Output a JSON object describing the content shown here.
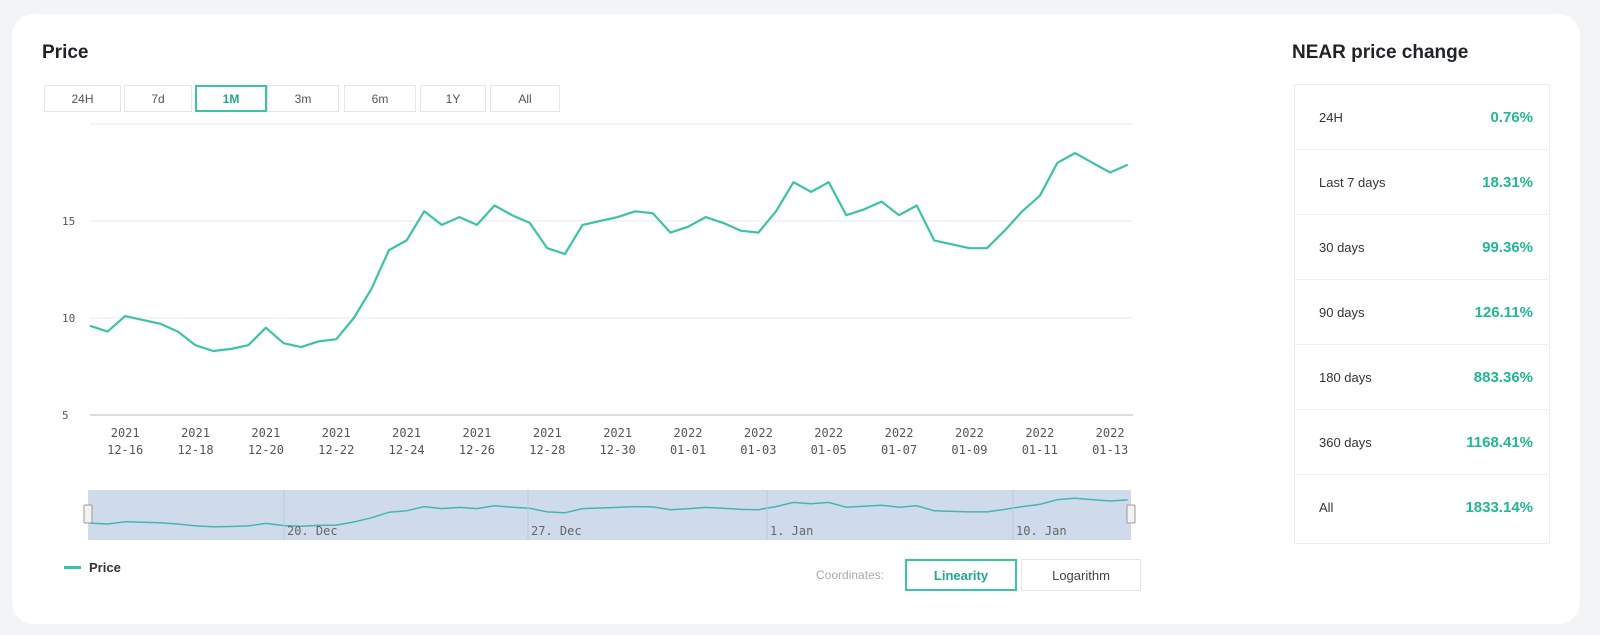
{
  "header": {
    "price_title": "Price",
    "change_title": "NEAR price change"
  },
  "ranges": [
    {
      "label": "24H"
    },
    {
      "label": "7d"
    },
    {
      "label": "1M",
      "active": true
    },
    {
      "label": "3m"
    },
    {
      "label": "6m"
    },
    {
      "label": "1Y"
    },
    {
      "label": "All"
    }
  ],
  "chart_data": {
    "type": "line",
    "title": "Price",
    "xlabel": "",
    "ylabel": "",
    "ylim": [
      5,
      20
    ],
    "y_ticks": [
      "15",
      "10",
      "5"
    ],
    "x_ticks": [
      {
        "year": "2021",
        "day": "12-16"
      },
      {
        "year": "2021",
        "day": "12-18"
      },
      {
        "year": "2021",
        "day": "12-20"
      },
      {
        "year": "2021",
        "day": "12-22"
      },
      {
        "year": "2021",
        "day": "12-24"
      },
      {
        "year": "2021",
        "day": "12-26"
      },
      {
        "year": "2021",
        "day": "12-28"
      },
      {
        "year": "2021",
        "day": "12-30"
      },
      {
        "year": "2022",
        "day": "01-01"
      },
      {
        "year": "2022",
        "day": "01-03"
      },
      {
        "year": "2022",
        "day": "01-05"
      },
      {
        "year": "2022",
        "day": "01-07"
      },
      {
        "year": "2022",
        "day": "01-09"
      },
      {
        "year": "2022",
        "day": "01-11"
      },
      {
        "year": "2022",
        "day": "01-13"
      }
    ],
    "series": [
      {
        "name": "Price",
        "color": "#3cc3a6",
        "x": [
          "2021-12-15",
          "2021-12-15 12:00",
          "2021-12-16",
          "2021-12-16 12:00",
          "2021-12-17",
          "2021-12-17 12:00",
          "2021-12-18",
          "2021-12-18 12:00",
          "2021-12-19",
          "2021-12-19 12:00",
          "2021-12-20",
          "2021-12-20 12:00",
          "2021-12-21",
          "2021-12-21 12:00",
          "2021-12-22",
          "2021-12-22 12:00",
          "2021-12-23",
          "2021-12-23 12:00",
          "2021-12-24",
          "2021-12-24 12:00",
          "2021-12-25",
          "2021-12-25 12:00",
          "2021-12-26",
          "2021-12-26 12:00",
          "2021-12-27",
          "2021-12-27 12:00",
          "2021-12-28",
          "2021-12-28 12:00",
          "2021-12-29",
          "2021-12-29 12:00",
          "2021-12-30",
          "2021-12-30 12:00",
          "2021-12-31",
          "2021-12-31 12:00",
          "2022-01-01",
          "2022-01-01 12:00",
          "2022-01-02",
          "2022-01-02 12:00",
          "2022-01-03",
          "2022-01-03 12:00",
          "2022-01-04",
          "2022-01-04 12:00",
          "2022-01-05",
          "2022-01-05 12:00",
          "2022-01-06",
          "2022-01-06 12:00",
          "2022-01-07",
          "2022-01-07 12:00",
          "2022-01-08",
          "2022-01-08 12:00",
          "2022-01-09",
          "2022-01-09 12:00",
          "2022-01-10",
          "2022-01-10 12:00",
          "2022-01-11",
          "2022-01-11 12:00",
          "2022-01-12",
          "2022-01-12 12:00",
          "2022-01-13",
          "2022-01-13 12:00"
        ],
        "values": [
          9.6,
          9.3,
          10.1,
          9.9,
          9.7,
          9.3,
          8.6,
          8.3,
          8.4,
          8.6,
          9.5,
          8.7,
          8.5,
          8.8,
          8.9,
          10.0,
          11.5,
          13.5,
          14.0,
          15.5,
          14.8,
          15.2,
          14.8,
          15.8,
          15.3,
          14.9,
          13.6,
          13.3,
          14.8,
          15.0,
          15.2,
          15.5,
          15.4,
          14.4,
          14.7,
          15.2,
          14.9,
          14.5,
          14.4,
          15.5,
          17.0,
          16.5,
          17.0,
          15.3,
          15.6,
          16.0,
          15.3,
          15.8,
          14.0,
          13.8,
          13.6,
          13.6,
          14.5,
          15.5,
          16.3,
          18.0,
          18.5,
          18.0,
          17.5,
          17.9
        ]
      }
    ]
  },
  "navigator_labels": [
    "20. Dec",
    "27. Dec",
    "1. Jan",
    "10. Jan"
  ],
  "legend": {
    "series_label": "Price"
  },
  "coordinates": {
    "label": "Coordinates:",
    "linear": "Linearity",
    "log": "Logarithm",
    "active": "linear"
  },
  "price_change": [
    {
      "label": "24H",
      "value": "0.76%"
    },
    {
      "label": "Last 7 days",
      "value": "18.31%"
    },
    {
      "label": "30 days",
      "value": "99.36%"
    },
    {
      "label": "90 days",
      "value": "126.11%"
    },
    {
      "label": "180 days",
      "value": "883.36%"
    },
    {
      "label": "360 days",
      "value": "1168.41%"
    },
    {
      "label": "All",
      "value": "1833.14%"
    }
  ]
}
